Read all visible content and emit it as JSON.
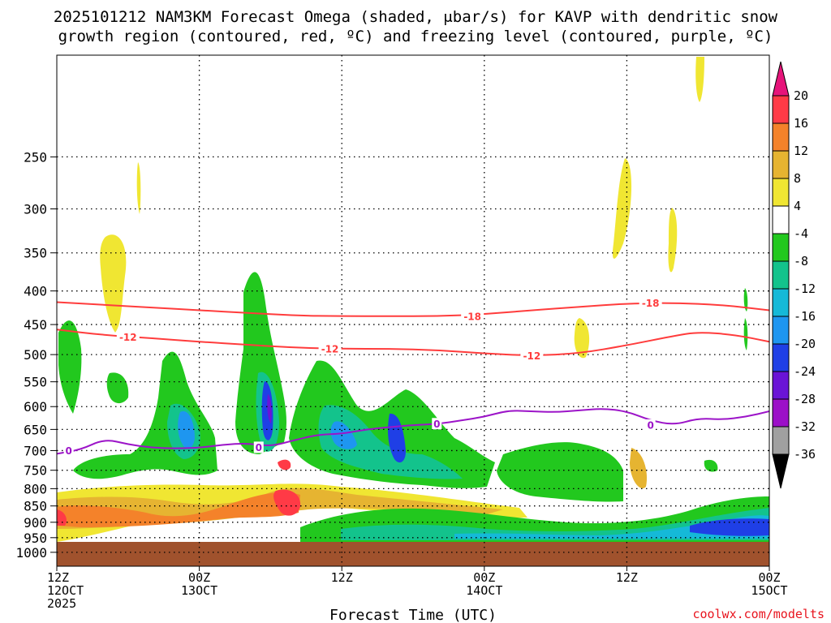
{
  "chart_data": {
    "type": "heatmap",
    "title_line1": "2025101212 NAM3KM Forecast Omega (shaded, μbar/s) for KAVP with dendritic snow",
    "title_line2": "growth region (contoured, red, ºC) and freezing level (contoured, purple, ºC)",
    "xlabel": "Forecast Time (UTC)",
    "ylabel": "",
    "yaxis_scale": "log-pressure",
    "ylim": [
      1050,
      175
    ],
    "y_ticks": [
      250,
      300,
      350,
      400,
      450,
      500,
      550,
      600,
      650,
      700,
      750,
      800,
      850,
      900,
      950,
      1000
    ],
    "x_ticks": [
      {
        "hour": 0,
        "line1": "12Z",
        "line2": "12OCT",
        "line3": "2025"
      },
      {
        "hour": 12,
        "line1": "00Z",
        "line2": "13OCT",
        "line3": ""
      },
      {
        "hour": 24,
        "line1": "12Z",
        "line2": "",
        "line3": ""
      },
      {
        "hour": 36,
        "line1": "00Z",
        "line2": "14OCT",
        "line3": ""
      },
      {
        "hour": 48,
        "line1": "12Z",
        "line2": "",
        "line3": ""
      },
      {
        "hour": 60,
        "line1": "00Z",
        "line2": "15OCT",
        "line3": ""
      }
    ],
    "xlim": [
      0,
      60
    ],
    "colorbar": {
      "labels": [
        "20",
        "16",
        "12",
        "8",
        "4",
        "-4",
        "-8",
        "-12",
        "-16",
        "-20",
        "-24",
        "-28",
        "-32",
        "-36"
      ],
      "colors": [
        "#ff3a46",
        "#f4822a",
        "#e6b431",
        "#f0e632",
        "#ffffff",
        "#22c81e",
        "#13c38c",
        "#15b9d8",
        "#1e96f0",
        "#1f3fe6",
        "#6a14d6",
        "#9c10c8",
        "#a0a0a0"
      ],
      "top_arrow_color": "#e6147a",
      "bottom_arrow_color": "#000000"
    },
    "surface_color": "#a0522d",
    "contours": [
      {
        "name": "-18 C isotherm",
        "color": "#ff3c3c",
        "label": "-18",
        "points": [
          [
            0,
            416
          ],
          [
            4,
            420
          ],
          [
            8,
            424
          ],
          [
            12,
            428
          ],
          [
            16,
            432
          ],
          [
            20,
            436
          ],
          [
            24,
            437
          ],
          [
            28,
            437
          ],
          [
            32,
            437
          ],
          [
            36,
            434
          ],
          [
            40,
            428
          ],
          [
            44,
            423
          ],
          [
            48,
            418
          ],
          [
            52,
            417
          ],
          [
            56,
            420
          ],
          [
            60,
            428
          ]
        ],
        "label_at": [
          [
            35,
            437
          ],
          [
            50,
            417
          ]
        ]
      },
      {
        "name": "-12 C isotherm",
        "color": "#ff3c3c",
        "label": "-12",
        "points": [
          [
            0,
            458
          ],
          [
            4,
            467
          ],
          [
            8,
            472
          ],
          [
            12,
            478
          ],
          [
            16,
            483
          ],
          [
            20,
            488
          ],
          [
            24,
            490
          ],
          [
            28,
            490
          ],
          [
            32,
            492
          ],
          [
            36,
            498
          ],
          [
            40,
            502
          ],
          [
            44,
            498
          ],
          [
            48,
            484
          ],
          [
            52,
            468
          ],
          [
            54,
            462
          ],
          [
            57,
            466
          ],
          [
            60,
            478
          ]
        ],
        "label_at": [
          [
            6,
            470
          ],
          [
            23,
            490
          ],
          [
            40,
            502
          ]
        ]
      },
      {
        "name": "0 C freezing level",
        "color": "#9c14c8",
        "label": "0",
        "points": [
          [
            0,
            708
          ],
          [
            2,
            698
          ],
          [
            4,
            672
          ],
          [
            6,
            685
          ],
          [
            8,
            693
          ],
          [
            10,
            695
          ],
          [
            12,
            693
          ],
          [
            14,
            686
          ],
          [
            16,
            682
          ],
          [
            18,
            690
          ],
          [
            20,
            675
          ],
          [
            22,
            662
          ],
          [
            24,
            660
          ],
          [
            26,
            650
          ],
          [
            28,
            645
          ],
          [
            30,
            640
          ],
          [
            32,
            638
          ],
          [
            34,
            630
          ],
          [
            36,
            622
          ],
          [
            38,
            608
          ],
          [
            40,
            610
          ],
          [
            42,
            612
          ],
          [
            44,
            608
          ],
          [
            46,
            604
          ],
          [
            48,
            610
          ],
          [
            50,
            630
          ],
          [
            52,
            640
          ],
          [
            54,
            625
          ],
          [
            56,
            628
          ],
          [
            58,
            622
          ],
          [
            60,
            610
          ]
        ],
        "label_at": [
          [
            1,
            700
          ],
          [
            17,
            692
          ],
          [
            32,
            637
          ],
          [
            50,
            640
          ]
        ]
      }
    ]
  },
  "credit": "coolwx.com/modelts"
}
